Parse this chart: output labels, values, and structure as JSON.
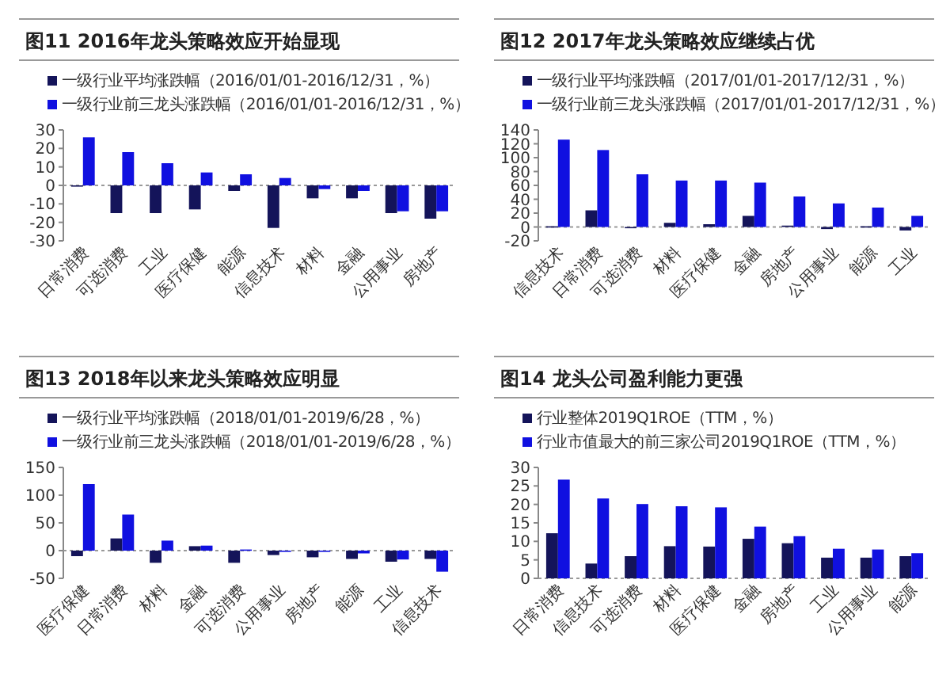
{
  "chart_data": [
    {
      "type": "bar",
      "title": "图11 2016年龙头策略效应开始显现",
      "categories": [
        "日常消费",
        "可选消费",
        "工业",
        "医疗保健",
        "能源",
        "信息技术",
        "材料",
        "金融",
        "公用事业",
        "房地产"
      ],
      "series": [
        {
          "name": "一级行业平均涨跌幅（2016/01/01-2016/12/31，%）",
          "color": "#14145a",
          "values": [
            0,
            -15,
            -15,
            -13,
            -3,
            -23,
            -7,
            -7,
            -15,
            -18
          ]
        },
        {
          "name": "一级行业前三龙头涨跌幅（2016/01/01-2016/12/31，%）",
          "color": "#1010e0",
          "values": [
            26,
            18,
            12,
            7,
            6,
            4,
            -2,
            -3,
            -14,
            -14
          ]
        }
      ],
      "ylim": [
        -30,
        30
      ],
      "yticks": [
        -30,
        -20,
        -10,
        0,
        10,
        20,
        30
      ],
      "legend": "top"
    },
    {
      "type": "bar",
      "title": "图12 2017年龙头策略效应继续占优",
      "categories": [
        "信息技术",
        "日常消费",
        "可选消费",
        "材料",
        "医疗保健",
        "金融",
        "房地产",
        "公用事业",
        "能源",
        "工业"
      ],
      "series": [
        {
          "name": "一级行业平均涨跌幅（2017/01/01-2017/12/31，%）",
          "color": "#14145a",
          "values": [
            1,
            24,
            0,
            6,
            4,
            16,
            2,
            -3,
            1,
            -5
          ]
        },
        {
          "name": "一级行业前三龙头涨跌幅（2017/01/01-2017/12/31，%）",
          "color": "#1010e0",
          "values": [
            126,
            111,
            76,
            67,
            67,
            64,
            44,
            34,
            28,
            16
          ]
        }
      ],
      "ylim": [
        -20,
        140
      ],
      "yticks": [
        -20,
        0,
        20,
        40,
        60,
        80,
        100,
        120,
        140
      ],
      "legend": "top"
    },
    {
      "type": "bar",
      "title": "图13 2018年以来龙头策略效应明显",
      "categories": [
        "医疗保健",
        "日常消费",
        "材料",
        "金融",
        "可选消费",
        "公用事业",
        "房地产",
        "能源",
        "工业",
        "信息技术"
      ],
      "series": [
        {
          "name": "一级行业平均涨跌幅（2018/01/01-2019/6/28，%）",
          "color": "#14145a",
          "values": [
            -10,
            22,
            -22,
            8,
            -22,
            -8,
            -12,
            -15,
            -20,
            -15
          ]
        },
        {
          "name": "一级行业前三龙头涨跌幅（2018/01/01-2019/6/28，%）",
          "color": "#1010e0",
          "values": [
            120,
            65,
            18,
            9,
            2,
            0,
            -2,
            -5,
            -16,
            -38
          ]
        }
      ],
      "ylim": [
        -50,
        150
      ],
      "yticks": [
        -50,
        0,
        50,
        100,
        150
      ],
      "legend": "top"
    },
    {
      "type": "bar",
      "title": "图14 龙头公司盈利能力更强",
      "categories": [
        "日常消费",
        "信息技术",
        "可选消费",
        "材料",
        "医疗保健",
        "金融",
        "房地产",
        "工业",
        "公用事业",
        "能源"
      ],
      "series": [
        {
          "name": "行业整体2019Q1ROE（TTM，%）",
          "color": "#14145a",
          "values": [
            12.2,
            4.0,
            6.0,
            8.7,
            8.6,
            10.7,
            9.5,
            5.6,
            5.6,
            6.0
          ]
        },
        {
          "name": "行业市值最大的前三家公司2019Q1ROE（TTM，%）",
          "color": "#1010e0",
          "values": [
            26.7,
            21.6,
            20.1,
            19.5,
            19.2,
            14.0,
            11.4,
            8.0,
            7.8,
            6.8
          ]
        }
      ],
      "ylim": [
        0,
        30
      ],
      "yticks": [
        0,
        5,
        10,
        15,
        20,
        25,
        30
      ],
      "legend": "top"
    }
  ]
}
